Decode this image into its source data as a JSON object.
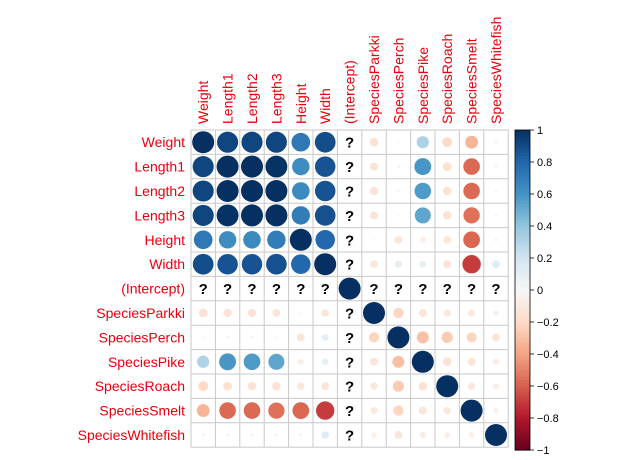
{
  "chart_data": {
    "type": "heatmap",
    "variables": [
      "Weight",
      "Length1",
      "Length2",
      "Length3",
      "Height",
      "Width",
      "(Intercept)",
      "SpeciesParkki",
      "SpeciesPerch",
      "SpeciesPike",
      "SpeciesRoach",
      "SpeciesSmelt",
      "SpeciesWhitefish"
    ],
    "matrix": [
      [
        1,
        0.92,
        0.92,
        0.92,
        0.72,
        0.89,
        null,
        -0.15,
        0.0,
        0.31,
        -0.2,
        -0.34,
        0.02
      ],
      [
        0.92,
        1,
        1,
        0.99,
        0.63,
        0.87,
        null,
        -0.14,
        0.02,
        0.59,
        -0.16,
        -0.57,
        0.02
      ],
      [
        0.92,
        1,
        1,
        1,
        0.64,
        0.87,
        null,
        -0.14,
        0.02,
        0.57,
        -0.15,
        -0.57,
        0.02
      ],
      [
        0.92,
        0.99,
        1,
        1,
        0.7,
        0.88,
        null,
        -0.13,
        0.0,
        0.53,
        -0.15,
        -0.55,
        0.02
      ],
      [
        0.72,
        0.63,
        0.64,
        0.7,
        1,
        0.79,
        null,
        0.0,
        -0.13,
        -0.07,
        -0.12,
        -0.58,
        0.02
      ],
      [
        0.89,
        0.87,
        0.87,
        0.88,
        0.79,
        1,
        null,
        -0.12,
        0.1,
        0.09,
        -0.13,
        -0.7,
        0.12
      ],
      [
        null,
        null,
        null,
        null,
        null,
        null,
        1,
        null,
        null,
        null,
        null,
        null,
        null
      ],
      [
        -0.15,
        -0.14,
        -0.14,
        -0.13,
        0.0,
        -0.12,
        null,
        1,
        -0.22,
        -0.13,
        -0.11,
        -0.1,
        -0.06
      ],
      [
        0.0,
        0.02,
        0.02,
        0.0,
        -0.13,
        0.1,
        null,
        -0.22,
        1,
        -0.3,
        -0.26,
        -0.22,
        -0.13
      ],
      [
        0.31,
        0.59,
        0.57,
        0.53,
        -0.07,
        0.09,
        null,
        -0.13,
        -0.3,
        1,
        -0.15,
        -0.13,
        -0.08
      ],
      [
        -0.2,
        -0.16,
        -0.15,
        -0.15,
        -0.12,
        -0.13,
        null,
        -0.11,
        -0.26,
        -0.15,
        1,
        -0.11,
        -0.07
      ],
      [
        -0.34,
        -0.57,
        -0.57,
        -0.55,
        -0.58,
        -0.7,
        null,
        -0.1,
        -0.22,
        -0.13,
        -0.11,
        1,
        -0.06
      ],
      [
        0.02,
        0.02,
        0.02,
        0.02,
        0.02,
        0.12,
        null,
        -0.06,
        -0.13,
        -0.08,
        -0.07,
        -0.06,
        1
      ]
    ],
    "missing_symbol": "?",
    "colorbar": {
      "ticks": [
        "1",
        "0.8",
        "0.6",
        "0.4",
        "0.2",
        "0",
        "−0.2",
        "−0.4",
        "−0.6",
        "−0.8",
        "−1"
      ],
      "range": [
        -1,
        1
      ],
      "low_color": "#67001F",
      "mid_color": "#FFFFFF",
      "high_color": "#053061"
    },
    "label_color": "#E8000B",
    "grid": true
  }
}
